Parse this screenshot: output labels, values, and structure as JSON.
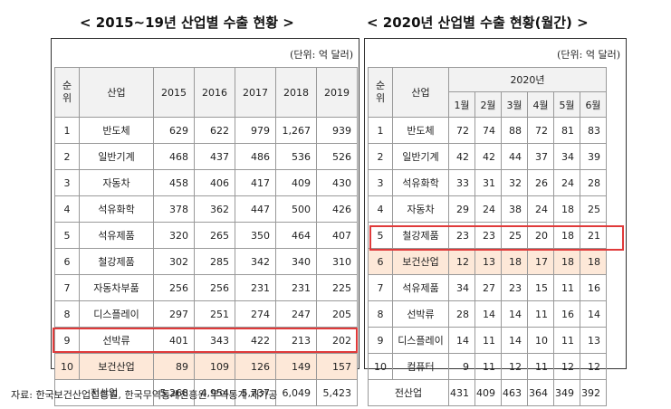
{
  "left": {
    "title": "< 2015~19년 산업별 수출 현황 >",
    "unit": "(단위: 억 달러)",
    "header": {
      "rank_top": "순",
      "rank_bottom": "위",
      "industry": "산업",
      "years": [
        "2015",
        "2016",
        "2017",
        "2018",
        "2019"
      ]
    },
    "rows": [
      {
        "rank": "1",
        "industry": "반도체",
        "values": [
          "629",
          "622",
          "979",
          "1,267",
          "939"
        ]
      },
      {
        "rank": "2",
        "industry": "일반기계",
        "values": [
          "468",
          "437",
          "486",
          "536",
          "526"
        ]
      },
      {
        "rank": "3",
        "industry": "자동차",
        "values": [
          "458",
          "406",
          "417",
          "409",
          "430"
        ]
      },
      {
        "rank": "4",
        "industry": "석유화학",
        "values": [
          "378",
          "362",
          "447",
          "500",
          "426"
        ]
      },
      {
        "rank": "5",
        "industry": "석유제품",
        "values": [
          "320",
          "265",
          "350",
          "464",
          "407"
        ]
      },
      {
        "rank": "6",
        "industry": "철강제품",
        "values": [
          "302",
          "285",
          "342",
          "340",
          "310"
        ]
      },
      {
        "rank": "7",
        "industry": "자동차부품",
        "values": [
          "256",
          "256",
          "231",
          "231",
          "225"
        ]
      },
      {
        "rank": "8",
        "industry": "디스플레이",
        "values": [
          "297",
          "251",
          "274",
          "247",
          "205"
        ]
      },
      {
        "rank": "9",
        "industry": "선박류",
        "values": [
          "401",
          "343",
          "422",
          "213",
          "202"
        ]
      },
      {
        "rank": "10",
        "industry": "보건산업",
        "values": [
          "89",
          "109",
          "126",
          "149",
          "157"
        ]
      }
    ],
    "total": {
      "label": "전산업",
      "values": [
        "5,268",
        "4,954",
        "5,737",
        "6,049",
        "5,423"
      ]
    }
  },
  "right": {
    "title": "< 2020년 산업별 수출 현황(월간) >",
    "unit": "(단위: 억 달러)",
    "header": {
      "rank_top": "순",
      "rank_bottom": "위",
      "industry": "산업",
      "year": "2020년",
      "months": [
        "1월",
        "2월",
        "3월",
        "4월",
        "5월",
        "6월"
      ]
    },
    "rows": [
      {
        "rank": "1",
        "industry": "반도체",
        "values": [
          "72",
          "74",
          "88",
          "72",
          "81",
          "83"
        ]
      },
      {
        "rank": "2",
        "industry": "일반기계",
        "values": [
          "42",
          "42",
          "44",
          "37",
          "34",
          "39"
        ]
      },
      {
        "rank": "3",
        "industry": "석유화학",
        "values": [
          "33",
          "31",
          "32",
          "26",
          "24",
          "28"
        ]
      },
      {
        "rank": "4",
        "industry": "자동차",
        "values": [
          "29",
          "24",
          "38",
          "24",
          "18",
          "25"
        ]
      },
      {
        "rank": "5",
        "industry": "철강제품",
        "values": [
          "23",
          "23",
          "25",
          "20",
          "18",
          "21"
        ]
      },
      {
        "rank": "6",
        "industry": "보건산업",
        "values": [
          "12",
          "13",
          "18",
          "17",
          "18",
          "18"
        ]
      },
      {
        "rank": "7",
        "industry": "석유제품",
        "values": [
          "34",
          "27",
          "23",
          "15",
          "11",
          "16"
        ]
      },
      {
        "rank": "8",
        "industry": "선박류",
        "values": [
          "28",
          "14",
          "14",
          "11",
          "16",
          "14"
        ]
      },
      {
        "rank": "9",
        "industry": "디스플레이",
        "values": [
          "14",
          "11",
          "14",
          "10",
          "11",
          "13"
        ]
      },
      {
        "rank": "10",
        "industry": "컴퓨터",
        "values": [
          "9",
          "11",
          "12",
          "11",
          "12",
          "12"
        ]
      }
    ],
    "total": {
      "label": "전산업",
      "values": [
        "431",
        "409",
        "463",
        "364",
        "349",
        "392"
      ]
    }
  },
  "source": "자료: 한국보건산업진흥원, 한국무역통계진흥원 무역통계 재가공",
  "colors": {
    "highlight_border": "#e03a3a",
    "highlight_fill": "#fde8d8"
  }
}
